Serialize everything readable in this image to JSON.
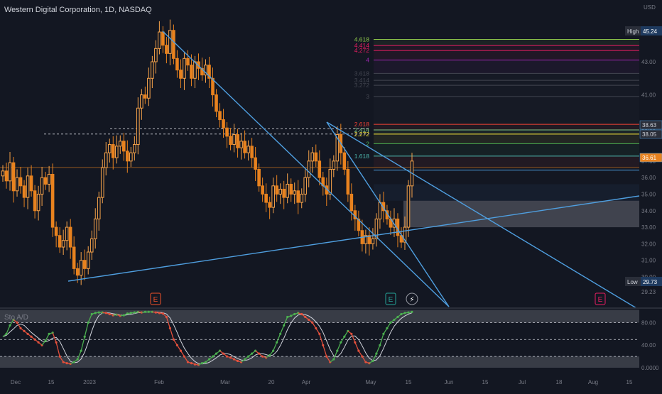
{
  "header": {
    "title": "Western Digital Corporation, 1D, NASDAQ",
    "currency": "USD"
  },
  "colors": {
    "background": "#131722",
    "candle_up": "#f7a34a",
    "candle_down": "#e8821f",
    "trendline": "#4f9fe0",
    "dashed": "#c9cbd1",
    "stoch_k": "#9aa0ab",
    "stoch_up": "#4caf50",
    "stoch_down": "#e2503c",
    "band": "#7d808a"
  },
  "chart_data": [
    {
      "type": "candlestick",
      "x_axis_labels": [
        "Dec",
        "15",
        "2023",
        "Feb",
        "Mar",
        "20",
        "Apr",
        "May",
        "15",
        "Jun",
        "15",
        "Jul",
        "18",
        "Aug",
        "15"
      ],
      "y_axis_labels": [
        "43.00",
        "41.00",
        "39.00",
        "37.00",
        "36.00",
        "35.00",
        "34.00",
        "33.00",
        "32.00",
        "31.00",
        "30.00",
        "29.23"
      ],
      "ylim": [
        29.0,
        46.0
      ],
      "price_scale_labels": {
        "high": {
          "label": "High",
          "value": "45.24"
        },
        "low": {
          "label": "Low",
          "value": "29.73"
        },
        "markers": [
          "38.63",
          "38.05",
          "36.61"
        ]
      },
      "close_series": [
        36.4,
        35.8,
        36.9,
        35.2,
        36.0,
        35.5,
        34.8,
        36.1,
        35.2,
        34.0,
        35.0,
        36.0,
        35.6,
        36.2,
        33.0,
        32.5,
        31.8,
        32.2,
        33.0,
        31.8,
        30.5,
        30.1,
        31.0,
        30.5,
        31.5,
        32.3,
        33.5,
        34.8,
        36.6,
        37.5,
        38.0,
        37.2,
        37.9,
        38.2,
        37.6,
        37.0,
        37.5,
        38.0,
        40.2,
        41.0,
        40.8,
        42.0,
        43.0,
        43.8,
        44.8,
        44.0,
        43.5,
        44.9,
        43.2,
        42.5,
        42.0,
        43.2,
        42.8,
        42.0,
        43.0,
        42.6,
        42.2,
        42.8,
        42.0,
        41.0,
        40.0,
        39.5,
        39.0,
        38.5,
        38.0,
        38.6,
        37.8,
        38.2,
        37.5,
        37.9,
        37.2,
        36.5,
        35.5,
        35.0,
        34.5,
        34.2,
        35.5,
        35.0,
        35.3,
        34.8,
        35.6,
        35.0,
        35.2,
        34.5,
        35.0,
        36.0,
        37.0,
        37.5,
        37.0,
        36.0,
        35.5,
        35.0,
        36.5,
        37.0,
        38.6,
        37.5,
        36.5,
        35.0,
        34.0,
        33.5,
        32.8,
        32.0,
        32.5,
        32.0,
        32.3,
        33.5,
        34.5,
        34.0,
        33.5,
        33.0,
        33.5,
        32.5,
        32.1,
        33.0,
        35.5,
        37.0
      ],
      "fibonacci": [
        {
          "level": "4.618",
          "price": 44.35,
          "color": "#8bc34a"
        },
        {
          "level": "4.414",
          "price": 43.98,
          "color": "#e91e63"
        },
        {
          "level": "4.272",
          "price": 43.68,
          "color": "#e91e63"
        },
        {
          "level": "4",
          "price": 43.1,
          "color": "#9c27b0"
        },
        {
          "level": "3.618",
          "price": 42.3,
          "color": "#434651"
        },
        {
          "level": "3.414",
          "price": 41.88,
          "color": "#434651"
        },
        {
          "level": "3.272",
          "price": 41.58,
          "color": "#434651"
        },
        {
          "level": "3",
          "price": 40.9,
          "color": "#434651"
        },
        {
          "level": "2.618",
          "price": 39.22,
          "color": "#f44336"
        },
        {
          "level": "2.414",
          "price": 38.88,
          "color": "#81c784"
        },
        {
          "level": "2.272",
          "price": 38.63,
          "color": "#ffeb3b"
        },
        {
          "level": "2",
          "price": 38.05,
          "color": "#4caf50"
        },
        {
          "level": "1.618",
          "price": 37.3,
          "color": "#4db6ac"
        }
      ],
      "fib_current_price_line": 36.61,
      "range_box": {
        "top_price": 34.6,
        "bottom_price": 33.0
      },
      "event_markers": [
        {
          "label": "E",
          "color": "#f0512b"
        },
        {
          "label": "E",
          "color": "#26a69a"
        },
        {
          "label": "⚡",
          "color": "#ffffff"
        },
        {
          "label": "E",
          "color": "#e91e63"
        }
      ]
    },
    {
      "type": "line",
      "title": "Sto A/D",
      "y_axis_labels": [
        "80.00",
        "40.00",
        "0.0000"
      ],
      "ylim": [
        0,
        100
      ],
      "upper_band": [
        80,
        100
      ],
      "lower_band": [
        0,
        20
      ],
      "k_series": [
        55,
        60,
        75,
        85,
        80,
        70,
        65,
        60,
        55,
        50,
        45,
        40,
        48,
        60,
        62,
        45,
        20,
        10,
        8,
        7,
        10,
        15,
        30,
        55,
        80,
        95,
        97,
        98,
        98,
        97,
        95,
        93,
        94,
        92,
        93,
        96,
        97,
        98,
        99,
        98,
        99,
        99,
        99,
        98,
        97,
        96,
        90,
        70,
        50,
        40,
        30,
        20,
        10,
        8,
        6,
        5,
        8,
        10,
        15,
        20,
        25,
        30,
        25,
        20,
        18,
        15,
        12,
        10,
        15,
        20,
        25,
        30,
        25,
        20,
        18,
        22,
        30,
        45,
        60,
        75,
        90,
        92,
        95,
        97,
        95,
        90,
        85,
        80,
        70,
        60,
        40,
        20,
        10,
        15,
        30,
        45,
        55,
        65,
        60,
        45,
        30,
        20,
        10,
        8,
        12,
        25,
        40,
        60,
        70,
        80,
        85,
        90,
        95,
        97,
        98,
        99
      ]
    }
  ]
}
